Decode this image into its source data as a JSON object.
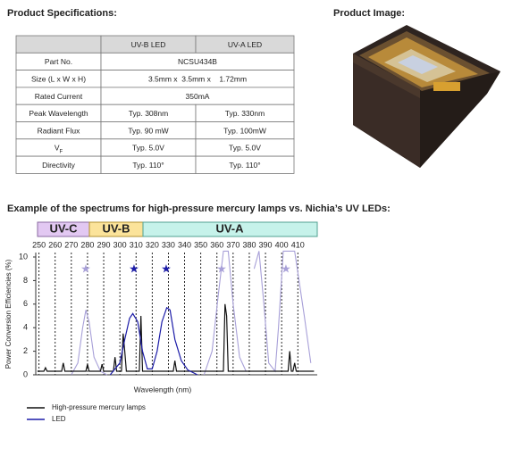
{
  "spec_title": "Product Specifications:",
  "image_title": "Product Image:",
  "table": {
    "header": [
      "",
      "UV-B LED",
      "UV-A LED"
    ],
    "rows": [
      [
        "Part No.",
        "NCSU434B"
      ],
      [
        "Size (L x W x H)",
        "3.5mm x  3.5mm x    1.72mm"
      ],
      [
        "Rated Current",
        "350mA"
      ],
      [
        "Peak Wavelength",
        "Typ. 308nm",
        "Typ. 330nm"
      ],
      [
        "Radiant Flux",
        "Typ. 90 mW",
        "Typ. 100mW"
      ],
      [
        {
          "main": "V",
          "sub": "F"
        },
        "Typ. 5.0V",
        "Typ. 5.0V"
      ],
      [
        "Directivity",
        "Typ. 110°",
        "Typ. 110°"
      ]
    ]
  },
  "chart_data": {
    "type": "line",
    "title": "Example of the spectrums for high-pressure mercury lamps vs. Nichia’s UV LEDs:",
    "bands": [
      "UV-C",
      "UV-B",
      "UV-A"
    ],
    "xlabel": "Wavelength (nm)",
    "ylabel": "Power Conversion Efficiencies (%)",
    "xlim": [
      248,
      422
    ],
    "ylim": [
      0,
      10
    ],
    "xticks": [
      250,
      260,
      270,
      280,
      290,
      300,
      310,
      320,
      330,
      340,
      350,
      360,
      370,
      380,
      390,
      400,
      410
    ],
    "yticks": [
      0,
      2,
      4,
      6,
      8,
      10
    ],
    "series": [
      {
        "name": "High-pressure mercury lamps",
        "color": "#111111",
        "x": [
          249,
          253,
          254,
          255,
          264,
          265,
          266,
          279,
          280,
          281,
          288,
          289,
          290,
          296,
          297,
          298,
          301,
          302,
          303,
          304,
          312,
          313,
          314,
          333,
          334,
          335,
          364,
          365,
          366,
          367,
          404,
          405,
          406,
          407,
          408,
          409,
          420
        ],
        "values": [
          0.3,
          0.3,
          0.6,
          0.3,
          0.3,
          1.0,
          0.3,
          0.3,
          0.9,
          0.3,
          0.3,
          0.9,
          0.3,
          0.3,
          1.5,
          0.3,
          0.3,
          3.5,
          2.0,
          0.3,
          0.3,
          5.0,
          0.3,
          0.3,
          1.2,
          0.3,
          0.3,
          6.0,
          5.0,
          0.3,
          0.3,
          2.0,
          0.3,
          0.3,
          1.0,
          0.3,
          0.3
        ]
      },
      {
        "name": "LED",
        "color": "#1c1ca8",
        "x": [
          294,
          300,
          303,
          306,
          308,
          311,
          314,
          317,
          320,
          323,
          326,
          329,
          331,
          334,
          338,
          342,
          348
        ],
        "values": [
          0,
          1,
          3,
          4.8,
          5.2,
          4.5,
          2,
          0.5,
          0.5,
          2,
          4.5,
          5.7,
          5.5,
          3,
          1.2,
          0.4,
          0
        ]
      },
      {
        "color": "#a8a0d8",
        "x": [
          270,
          274,
          277,
          279,
          281,
          284,
          288,
          292,
          292,
          352,
          357,
          361,
          364,
          367,
          370,
          374,
          378,
          378,
          383,
          386,
          389,
          392,
          396,
          398,
          401,
          408,
          414,
          418
        ],
        "values": [
          0,
          1,
          4,
          5.5,
          4.5,
          1.5,
          0.3,
          0,
          null,
          0,
          2,
          7,
          10.5,
          10.5,
          6,
          1.5,
          0.3,
          null,
          9,
          10.5,
          6,
          1,
          0.3,
          4,
          10.5,
          10.5,
          5,
          1
        ]
      }
    ]
  }
}
